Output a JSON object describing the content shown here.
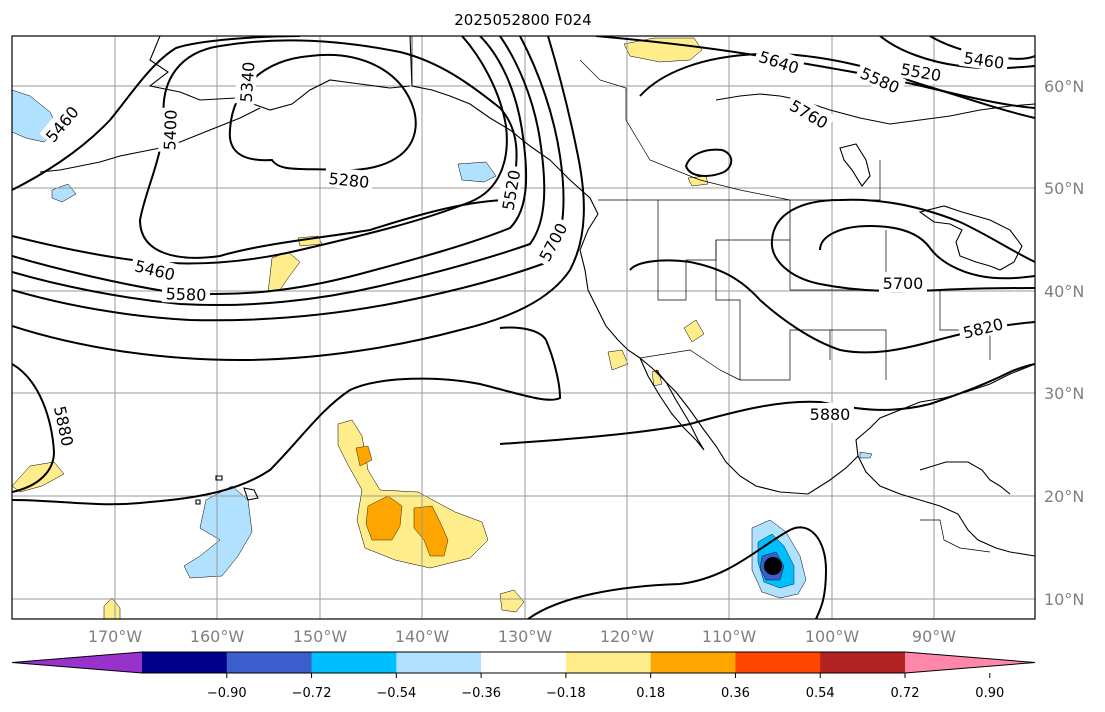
{
  "title": "2025052800 F024",
  "lat_labels": [
    "60°N",
    "50°N",
    "40°N",
    "30°N",
    "20°N",
    "10°N"
  ],
  "lon_labels": [
    "170°W",
    "160°W",
    "150°W",
    "140°W",
    "130°W",
    "120°W",
    "110°W",
    "100°W",
    "90°W"
  ],
  "contour_labels": [
    "5460",
    "5400",
    "5340",
    "5280",
    "5640",
    "5580",
    "5520",
    "5460",
    "5760",
    "5520",
    "5700",
    "5460",
    "5580",
    "5700",
    "5820",
    "5880",
    "5880"
  ],
  "colorbar": {
    "tick_labels": [
      "−0.90",
      "−0.72",
      "−0.54",
      "−0.36",
      "−0.18",
      "0.18",
      "0.36",
      "0.54",
      "0.72",
      "0.90"
    ],
    "colors": [
      "#9932CC",
      "#00008B",
      "#3A5FCD",
      "#00BFFF",
      "#B0E2FF",
      "#FFFFFF",
      "#FFEC8B",
      "#FFA500",
      "#FF4500",
      "#B22222",
      "#FF88AA"
    ]
  },
  "map_colors": {
    "shade_pos_light": "#FFEC8B",
    "shade_pos_mid": "#FFA500",
    "shade_neg_light": "#B0E2FF",
    "shade_neg_mid": "#00BFFF",
    "shade_neg_dark": "#3A5FCD",
    "shade_neg_darkest": "#000000"
  }
}
